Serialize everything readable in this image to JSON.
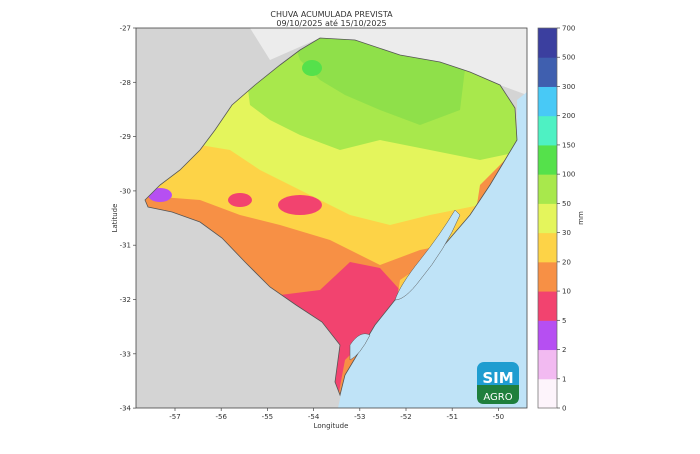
{
  "title": "CHUVA ACUMULADA PREVISTA",
  "subtitle": "09/10/2025 até 15/10/2025",
  "map": {
    "xlabel": "Longitude",
    "ylabel": "Latitude",
    "x_ticks": [
      "-57",
      "-56",
      "-55",
      "-54",
      "-53",
      "-52",
      "-51",
      "-50"
    ],
    "y_ticks": [
      "-27",
      "-28",
      "-29",
      "-30",
      "-31",
      "-32",
      "-33",
      "-34"
    ],
    "colors": {
      "ocean": "#bfe3f7",
      "neighbor_land": "#d4d4d4",
      "north_land": "#ececec"
    }
  },
  "colorbar": {
    "unit": "mm",
    "levels": [
      "0",
      "1",
      "2",
      "5",
      "10",
      "20",
      "30",
      "50",
      "100",
      "150",
      "200",
      "300",
      "500",
      "700"
    ],
    "colors": [
      "#fdf4fb",
      "#f2baf1",
      "#b64ff2",
      "#f2436f",
      "#f79045",
      "#fdd347",
      "#e4f55c",
      "#a8e84c",
      "#55e14b",
      "#4ef1c3",
      "#48c9f6",
      "#3f5faf",
      "#3b3f9f"
    ]
  },
  "logo": {
    "line1": "SIM",
    "line2": "AGRO"
  }
}
